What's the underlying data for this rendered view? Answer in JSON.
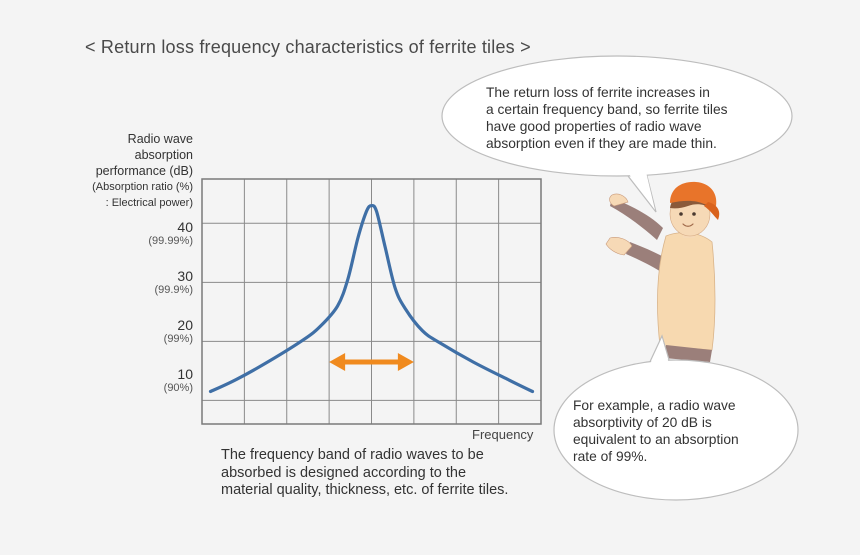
{
  "title": "< Return loss frequency characteristics of ferrite tiles >",
  "chart_data": {
    "type": "line",
    "ylabel_lines": [
      "Radio wave",
      "absorption",
      "performance (dB)"
    ],
    "ylabel_sub_lines": [
      "(Absorption ratio (%)",
      ": Electrical power)"
    ],
    "xlabel": "Frequency",
    "ylim": [
      6,
      47.5
    ],
    "xlim": [
      0,
      10
    ],
    "grid": true,
    "y_ticks": [
      {
        "value": 40,
        "label": "40",
        "sub": "(99.99%)"
      },
      {
        "value": 30,
        "label": "30",
        "sub": "(99.9%)"
      },
      {
        "value": 20,
        "label": "20",
        "sub": "(99%)"
      },
      {
        "value": 10,
        "label": "10",
        "sub": "(90%)"
      }
    ],
    "series": [
      {
        "color": "#3f6fa6",
        "x": [
          0.25,
          1,
          2,
          3,
          3.5,
          4,
          4.3,
          4.6,
          4.85,
          5.0,
          5.15,
          5.4,
          5.7,
          6,
          6.5,
          7,
          8,
          9,
          9.75
        ],
        "y": [
          11.5,
          13.5,
          16.7,
          20.3,
          22.6,
          26,
          30.5,
          37.5,
          42.0,
          43.0,
          42.0,
          36,
          29,
          25.5,
          21.8,
          19.8,
          16.5,
          13.6,
          11.5
        ]
      }
    ],
    "annotation": {
      "type": "double-arrow",
      "color": "#f08a1e",
      "x_from": 3.75,
      "x_to": 6.25,
      "y": 16.5
    }
  },
  "caption": "The frequency band of radio waves to be absorbed is designed according to the material quality, thickness, etc. of ferrite tiles.",
  "bubble1": {
    "lines": [
      "The return loss of ferrite increases in",
      "a certain frequency band, so ferrite tiles",
      "have good properties of radio wave",
      "absorption even if they are made thin."
    ]
  },
  "bubble2": {
    "lines": [
      "For example, a radio wave",
      "absorptivity of 20 dB is",
      "equivalent to an absorption",
      "rate of 99%."
    ]
  },
  "colors": {
    "background": "#f4f4f4",
    "curve": "#3f6fa6",
    "arrow": "#f08a1e",
    "grid": "#8a8a8a",
    "hat": "#e8742a",
    "shirt": "#f7d9b0",
    "sleeve": "#9b7f7a"
  }
}
